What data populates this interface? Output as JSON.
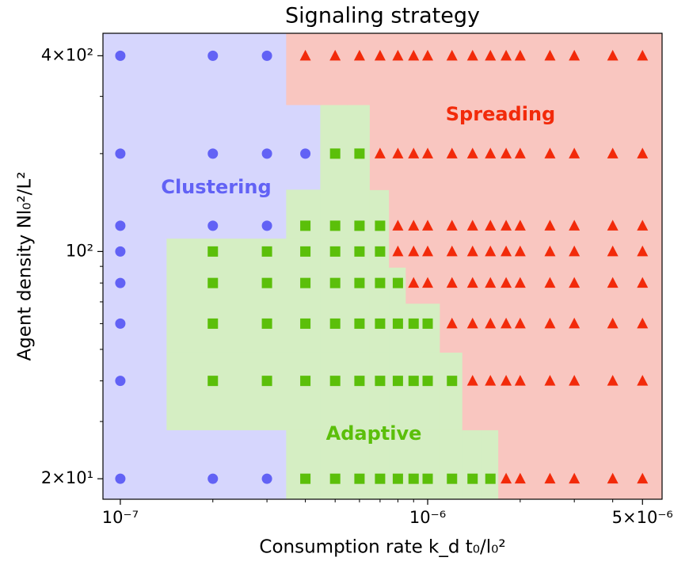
{
  "chart_data": {
    "type": "scatter",
    "title": "Signaling strategy",
    "x_label": "Consumption rate k_d t₀/l₀²",
    "y_label": "Agent density Nl₀²/L²",
    "xscale": "log",
    "yscale": "log",
    "xlim": [
      8.78e-08,
      5.79e-06
    ],
    "ylim": [
      17.3,
      469
    ],
    "xticks": [
      {
        "value": 1e-07,
        "label": "10⁻⁷"
      },
      {
        "value": 1e-06,
        "label": "10⁻⁶"
      },
      {
        "value": 5e-06,
        "label": "5×10⁻⁶"
      }
    ],
    "yticks": [
      {
        "value": 20,
        "label": "2×10¹"
      },
      {
        "value": 100,
        "label": "10²"
      },
      {
        "value": 400,
        "label": "4×10²"
      }
    ],
    "xminorticks": [
      2e-07,
      3e-07,
      4e-07,
      5e-07,
      6e-07,
      7e-07,
      8e-07,
      9e-07,
      2e-06,
      3e-06,
      4e-06
    ],
    "yminorticks": [
      30,
      40,
      50,
      60,
      70,
      80,
      90,
      200,
      300
    ],
    "series": [
      {
        "name": "Clustering",
        "color": "#6262f5",
        "region_color": "#d6d6fd",
        "marker": "circle",
        "x": [
          1e-07,
          2e-07,
          3e-07,
          1e-07,
          2e-07,
          3e-07,
          4e-07,
          1e-07,
          2e-07,
          3e-07,
          1e-07,
          1e-07,
          1e-07,
          1e-07,
          1e-07,
          2e-07,
          3e-07
        ],
        "values": [
          400,
          400,
          400,
          200,
          200,
          200,
          200,
          120,
          120,
          120,
          100,
          80,
          60,
          40,
          20,
          20,
          20
        ]
      },
      {
        "name": "Adaptive",
        "color": "#5bbf0a",
        "region_color": "#d5eec3",
        "marker": "square",
        "x": [
          5e-07,
          6e-07,
          4e-07,
          5e-07,
          6e-07,
          7e-07,
          2e-07,
          3e-07,
          4e-07,
          5e-07,
          6e-07,
          7e-07,
          2e-07,
          3e-07,
          4e-07,
          5e-07,
          6e-07,
          7e-07,
          8e-07,
          2e-07,
          3e-07,
          4e-07,
          5e-07,
          6e-07,
          7e-07,
          8e-07,
          9e-07,
          1e-06,
          2e-07,
          3e-07,
          4e-07,
          5e-07,
          6e-07,
          7e-07,
          8e-07,
          9e-07,
          1e-06,
          1.2e-06,
          4e-07,
          5e-07,
          6e-07,
          7e-07,
          8e-07,
          9e-07,
          1e-06,
          1.2e-06,
          1.4e-06,
          1.6e-06
        ],
        "values": [
          200,
          200,
          120,
          120,
          120,
          120,
          100,
          100,
          100,
          100,
          100,
          100,
          80,
          80,
          80,
          80,
          80,
          80,
          80,
          60,
          60,
          60,
          60,
          60,
          60,
          60,
          60,
          60,
          40,
          40,
          40,
          40,
          40,
          40,
          40,
          40,
          40,
          40,
          20,
          20,
          20,
          20,
          20,
          20,
          20,
          20,
          20,
          20
        ]
      },
      {
        "name": "Spreading",
        "color": "#f22a0a",
        "region_color": "#f9c6c0",
        "marker": "triangle",
        "x": [
          4e-07,
          5e-07,
          6e-07,
          7e-07,
          8e-07,
          9e-07,
          1e-06,
          1.2e-06,
          1.4e-06,
          1.6e-06,
          1.8e-06,
          2e-06,
          2.5e-06,
          3e-06,
          4e-06,
          5e-06,
          7e-07,
          8e-07,
          9e-07,
          1e-06,
          1.2e-06,
          1.4e-06,
          1.6e-06,
          1.8e-06,
          2e-06,
          2.5e-06,
          3e-06,
          4e-06,
          5e-06,
          8e-07,
          9e-07,
          1e-06,
          1.2e-06,
          1.4e-06,
          1.6e-06,
          1.8e-06,
          2e-06,
          2.5e-06,
          3e-06,
          4e-06,
          5e-06,
          8e-07,
          9e-07,
          1e-06,
          1.2e-06,
          1.4e-06,
          1.6e-06,
          1.8e-06,
          2e-06,
          2.5e-06,
          3e-06,
          4e-06,
          5e-06,
          9e-07,
          1e-06,
          1.2e-06,
          1.4e-06,
          1.6e-06,
          1.8e-06,
          2e-06,
          2.5e-06,
          3e-06,
          4e-06,
          5e-06,
          1.2e-06,
          1.4e-06,
          1.6e-06,
          1.8e-06,
          2e-06,
          2.5e-06,
          3e-06,
          4e-06,
          5e-06,
          1.4e-06,
          1.6e-06,
          1.8e-06,
          2e-06,
          2.5e-06,
          3e-06,
          4e-06,
          5e-06,
          1.8e-06,
          2e-06,
          2.5e-06,
          3e-06,
          4e-06,
          5e-06
        ],
        "values": [
          400,
          400,
          400,
          400,
          400,
          400,
          400,
          400,
          400,
          400,
          400,
          400,
          400,
          400,
          400,
          400,
          200,
          200,
          200,
          200,
          200,
          200,
          200,
          200,
          200,
          200,
          200,
          200,
          200,
          120,
          120,
          120,
          120,
          120,
          120,
          120,
          120,
          120,
          120,
          120,
          120,
          100,
          100,
          100,
          100,
          100,
          100,
          100,
          100,
          100,
          100,
          100,
          100,
          80,
          80,
          80,
          80,
          80,
          80,
          80,
          80,
          80,
          80,
          80,
          60,
          60,
          60,
          60,
          60,
          60,
          60,
          60,
          60,
          40,
          40,
          40,
          40,
          40,
          40,
          40,
          40,
          20,
          20,
          20,
          20,
          20,
          20
        ]
      }
    ]
  }
}
